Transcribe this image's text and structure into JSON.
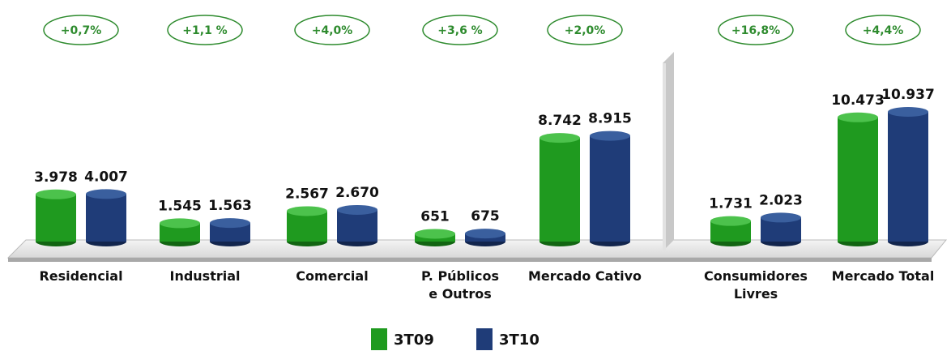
{
  "chart_data": {
    "type": "bar",
    "categories": [
      "Residencial",
      "Industrial",
      "Comercial",
      "P. Públicos\ne Outros",
      "Mercado Cativo",
      "Consumidores\nLivres",
      "Mercado Total"
    ],
    "series": [
      {
        "name": "3T09",
        "color": "#1f9a1f",
        "values": [
          3978,
          1545,
          2567,
          651,
          8742,
          1731,
          10473
        ],
        "value_labels": [
          "3.978",
          "1.545",
          "2.567",
          "651",
          "8.742",
          "1.731",
          "10.473"
        ]
      },
      {
        "name": "3T10",
        "color": "#1f3c78",
        "values": [
          4007,
          1563,
          2670,
          675,
          8915,
          2023,
          10937
        ],
        "value_labels": [
          "4.007",
          "1.563",
          "2.670",
          "675",
          "8.915",
          "2.023",
          "10.937"
        ]
      }
    ],
    "growth_labels": [
      "+0,7%",
      "+1,1 %",
      "+4,0%",
      "+3,6 %",
      "+2,0%",
      "+16,8%",
      "+4,4%"
    ]
  }
}
